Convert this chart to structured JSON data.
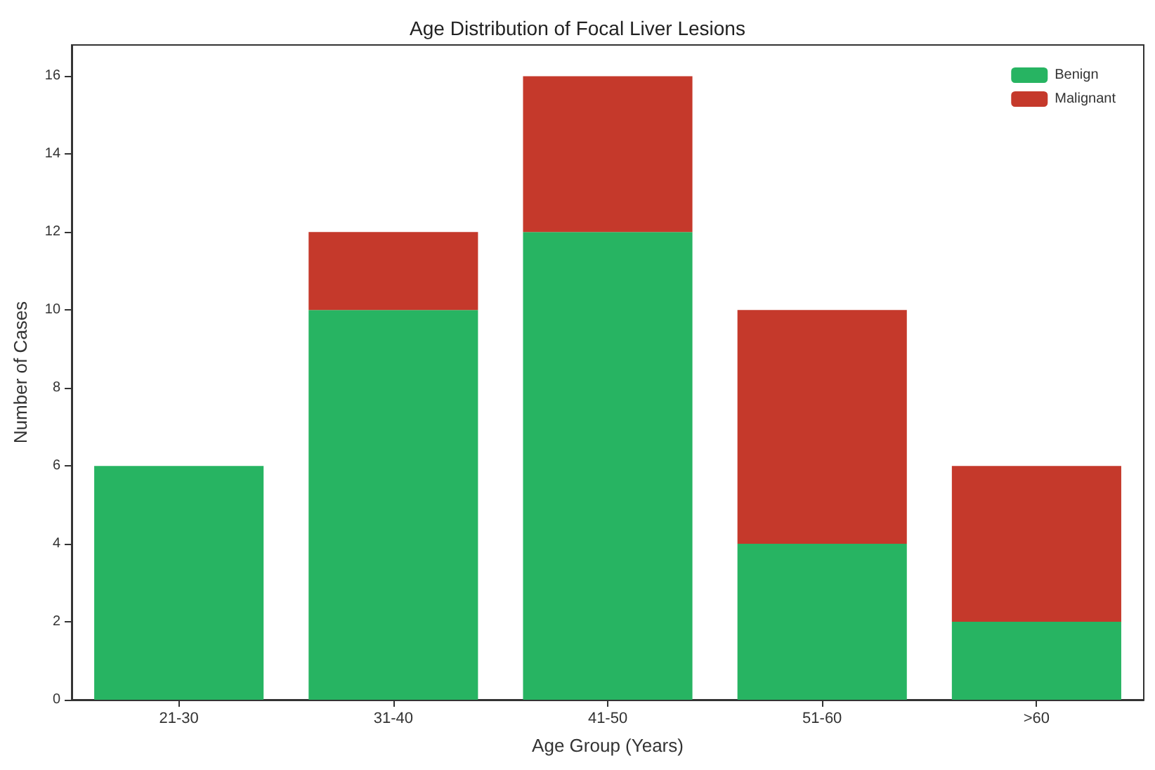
{
  "chart_data": {
    "type": "bar",
    "title": "Age Distribution of Focal Liver Lesions",
    "xlabel": "Age Group (Years)",
    "ylabel": "Number of Cases",
    "categories": [
      "21-30",
      "31-40",
      "41-50",
      "51-60",
      ">60"
    ],
    "stacked": true,
    "series": [
      {
        "name": "Benign",
        "color": "#27b462",
        "values": [
          6,
          10,
          12,
          4,
          2
        ]
      },
      {
        "name": "Malignant",
        "color": "#c5392b",
        "values": [
          0,
          2,
          4,
          6,
          4
        ]
      }
    ],
    "ylim": [
      0,
      16.8
    ],
    "yticks": [
      0,
      2,
      4,
      6,
      8,
      10,
      12,
      14,
      16
    ],
    "grid": false,
    "legend": "top right"
  }
}
